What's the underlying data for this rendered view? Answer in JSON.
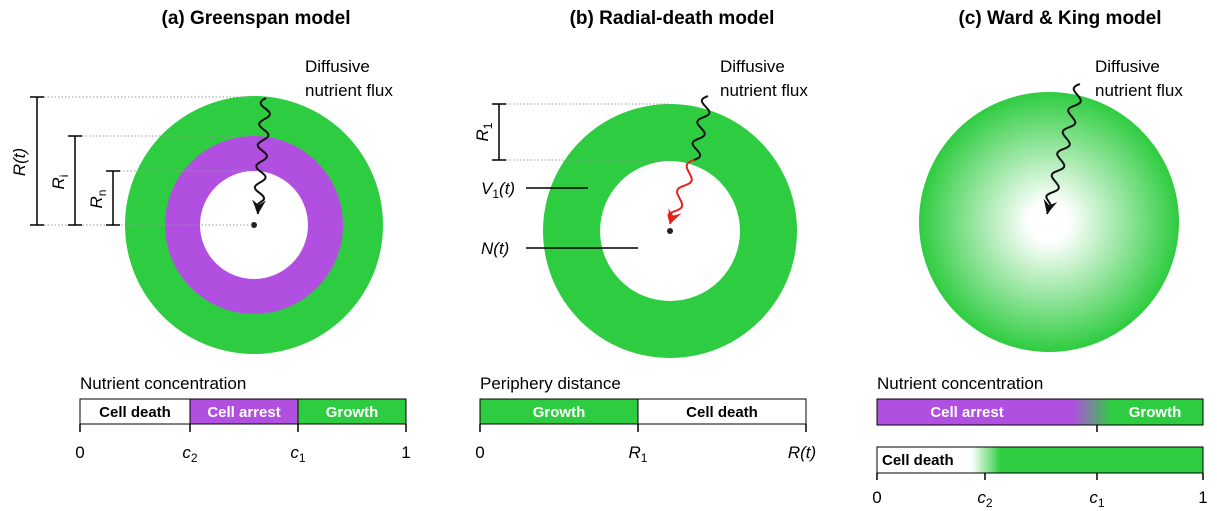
{
  "panels": [
    {
      "title": "(a) Greenspan model",
      "flux_label": [
        "Diffusive",
        "nutrient flux"
      ],
      "dimensions": [
        {
          "symbol": "R(t)"
        },
        {
          "symbol": "R",
          "sub": "i"
        },
        {
          "symbol": "R",
          "sub": "n"
        }
      ],
      "bar_title": "Nutrient concentration",
      "segments": [
        "Cell death",
        "Cell arrest",
        "Growth"
      ],
      "ticks": [
        {
          "text": "0"
        },
        {
          "symbol": "c",
          "sub": "2"
        },
        {
          "symbol": "c",
          "sub": "1"
        },
        {
          "text": "1"
        }
      ]
    },
    {
      "title": "(b) Radial-death model",
      "flux_label": [
        "Diffusive",
        "nutrient flux"
      ],
      "dimensions": [
        {
          "symbol": "R",
          "sub": "1"
        }
      ],
      "regions": [
        {
          "symbol": "V",
          "sub": "1",
          "suffix": "(t)"
        },
        {
          "symbol": "N(t)"
        }
      ],
      "bar_title": "Periphery distance",
      "segments": [
        "Growth",
        "Cell death"
      ],
      "ticks": [
        {
          "text": "0"
        },
        {
          "symbol": "R",
          "sub": "1"
        },
        {
          "symbol": "R(t)"
        }
      ]
    },
    {
      "title": "(c) Ward & King model",
      "flux_label": [
        "Diffusive",
        "nutrient flux"
      ],
      "bar_title": "Nutrient concentration",
      "segments": [
        "Cell arrest",
        "Growth",
        "Cell death"
      ],
      "ticks": [
        {
          "text": "0"
        },
        {
          "symbol": "c",
          "sub": "2"
        },
        {
          "symbol": "c",
          "sub": "1"
        },
        {
          "text": "1"
        }
      ]
    }
  ]
}
